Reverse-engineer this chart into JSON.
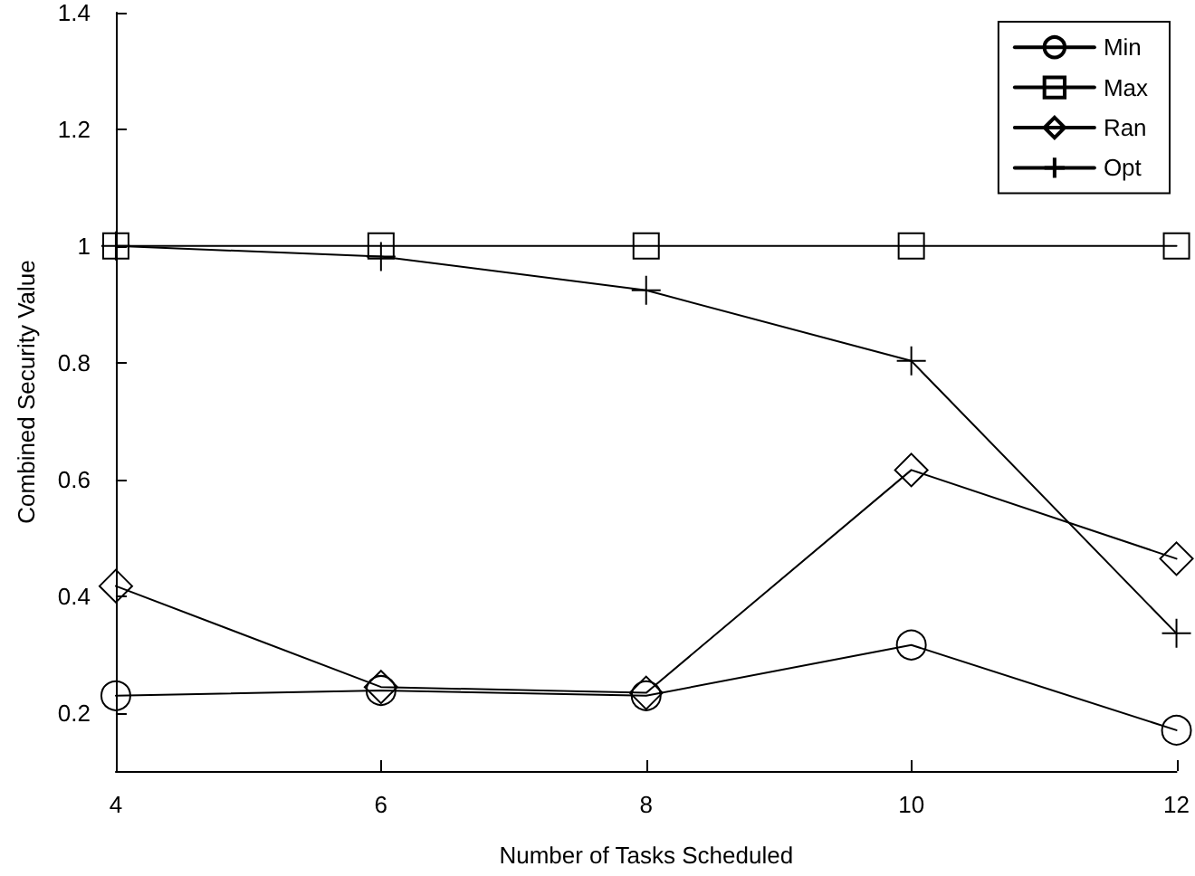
{
  "chart_data": {
    "type": "line",
    "xlabel": "Number of Tasks Scheduled",
    "ylabel": "Combined Security Value",
    "x": [
      4,
      6,
      8,
      10,
      12
    ],
    "series": [
      {
        "name": "Min",
        "color": "#000000",
        "marker": "circle",
        "values": [
          0.229,
          0.238,
          0.229,
          0.316,
          0.17
        ]
      },
      {
        "name": "Max",
        "color": "#000000",
        "marker": "square",
        "values": [
          1,
          1,
          1,
          1,
          1
        ]
      },
      {
        "name": "Ran",
        "color": "#000000",
        "marker": "diamond",
        "values": [
          0.417,
          0.244,
          0.234,
          0.616,
          0.464
        ]
      },
      {
        "name": "Opt",
        "color": "#000000",
        "marker": "cross",
        "values": [
          1,
          0.982,
          0.924,
          0.803,
          0.336
        ]
      }
    ],
    "xlim": [
      4,
      12
    ],
    "xticks": [
      4,
      6,
      8,
      10,
      12
    ],
    "ylim": [
      0.1,
      1.4
    ],
    "yticks": [
      0.2,
      0.4,
      0.6,
      0.8,
      1,
      1.2,
      1.4
    ],
    "grid": false,
    "legend": "top right",
    "line_style": "solid"
  }
}
